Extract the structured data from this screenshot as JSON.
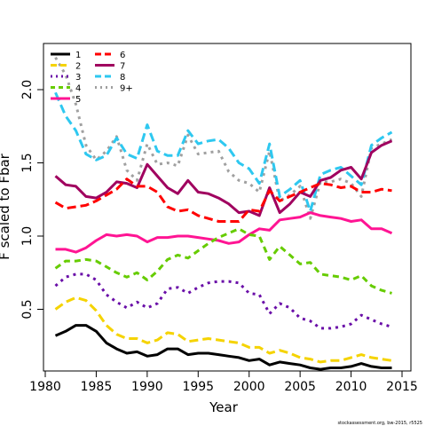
{
  "chart_data": {
    "type": "line",
    "xlabel": "Year",
    "ylabel": "F scaled to Fbar",
    "xlim": [
      1980,
      2015
    ],
    "ylim": [
      0.0,
      2.3
    ],
    "xticks": [
      1980,
      1985,
      1990,
      1995,
      2000,
      2005,
      2010,
      2015
    ],
    "yticks": [
      0.5,
      1.0,
      1.5,
      2.0
    ],
    "ytick_labels": [
      "0.5",
      "1.0",
      "1.5",
      "2.0"
    ],
    "legend_position": "top-left",
    "credit": "stockassessment.org, bw-2015, r5525",
    "x": [
      1981,
      1982,
      1983,
      1984,
      1985,
      1986,
      1987,
      1988,
      1989,
      1990,
      1991,
      1992,
      1993,
      1994,
      1995,
      1996,
      1997,
      1998,
      1999,
      2000,
      2001,
      2002,
      2003,
      2004,
      2005,
      2006,
      2007,
      2008,
      2009,
      2010,
      2011,
      2012,
      2013,
      2014
    ],
    "series": [
      {
        "name": "1",
        "color": "#000000",
        "dash": "solid",
        "values": [
          0.32,
          0.35,
          0.39,
          0.39,
          0.35,
          0.27,
          0.23,
          0.2,
          0.21,
          0.18,
          0.19,
          0.23,
          0.23,
          0.19,
          0.2,
          0.2,
          0.19,
          0.18,
          0.17,
          0.15,
          0.16,
          0.12,
          0.14,
          0.13,
          0.12,
          0.1,
          0.09,
          0.1,
          0.1,
          0.11,
          0.13,
          0.11,
          0.1,
          0.1
        ]
      },
      {
        "name": "2",
        "color": "#f5d300",
        "dash": "dash",
        "values": [
          0.5,
          0.55,
          0.58,
          0.56,
          0.49,
          0.39,
          0.33,
          0.3,
          0.3,
          0.27,
          0.29,
          0.34,
          0.33,
          0.28,
          0.29,
          0.3,
          0.29,
          0.28,
          0.27,
          0.24,
          0.24,
          0.2,
          0.22,
          0.2,
          0.17,
          0.16,
          0.14,
          0.15,
          0.15,
          0.17,
          0.19,
          0.17,
          0.16,
          0.15
        ]
      },
      {
        "name": "3",
        "color": "#6a0fa8",
        "dash": "dot",
        "values": [
          0.66,
          0.72,
          0.74,
          0.74,
          0.7,
          0.6,
          0.55,
          0.51,
          0.55,
          0.51,
          0.54,
          0.64,
          0.65,
          0.61,
          0.65,
          0.68,
          0.69,
          0.69,
          0.68,
          0.61,
          0.6,
          0.47,
          0.54,
          0.51,
          0.44,
          0.42,
          0.37,
          0.37,
          0.38,
          0.4,
          0.46,
          0.43,
          0.4,
          0.38
        ]
      },
      {
        "name": "4",
        "color": "#66cc00",
        "dash": "dashdot",
        "values": [
          0.78,
          0.83,
          0.83,
          0.84,
          0.83,
          0.79,
          0.75,
          0.72,
          0.75,
          0.7,
          0.76,
          0.84,
          0.87,
          0.85,
          0.9,
          0.95,
          0.99,
          1.02,
          1.05,
          1.01,
          1.0,
          0.84,
          0.93,
          0.87,
          0.81,
          0.82,
          0.74,
          0.73,
          0.72,
          0.7,
          0.73,
          0.66,
          0.63,
          0.61
        ]
      },
      {
        "name": "5",
        "color": "#ff1493",
        "dash": "solid",
        "values": [
          0.91,
          0.91,
          0.89,
          0.92,
          0.97,
          1.01,
          1.0,
          1.01,
          1.0,
          0.96,
          0.99,
          0.99,
          1.0,
          1.0,
          0.99,
          0.98,
          0.97,
          0.95,
          0.96,
          1.01,
          1.05,
          1.04,
          1.11,
          1.12,
          1.13,
          1.16,
          1.14,
          1.13,
          1.12,
          1.1,
          1.11,
          1.05,
          1.05,
          1.02
        ]
      },
      {
        "name": "6",
        "color": "#ff0000",
        "dash": "dash",
        "values": [
          1.23,
          1.19,
          1.2,
          1.21,
          1.24,
          1.28,
          1.32,
          1.39,
          1.34,
          1.34,
          1.3,
          1.2,
          1.17,
          1.18,
          1.14,
          1.12,
          1.1,
          1.1,
          1.1,
          1.18,
          1.17,
          1.31,
          1.24,
          1.27,
          1.3,
          1.33,
          1.36,
          1.35,
          1.33,
          1.34,
          1.3,
          1.3,
          1.32,
          1.31
        ]
      },
      {
        "name": "7",
        "color": "#a0005f",
        "dash": "solid",
        "values": [
          1.41,
          1.35,
          1.34,
          1.27,
          1.26,
          1.3,
          1.37,
          1.36,
          1.33,
          1.49,
          1.41,
          1.33,
          1.29,
          1.38,
          1.3,
          1.29,
          1.26,
          1.22,
          1.16,
          1.17,
          1.14,
          1.33,
          1.16,
          1.22,
          1.3,
          1.27,
          1.38,
          1.4,
          1.45,
          1.47,
          1.39,
          1.57,
          1.62,
          1.65
        ]
      },
      {
        "name": "8",
        "color": "#2ec8f0",
        "dash": "dash",
        "values": [
          1.98,
          1.82,
          1.72,
          1.56,
          1.52,
          1.55,
          1.67,
          1.56,
          1.53,
          1.76,
          1.58,
          1.55,
          1.55,
          1.72,
          1.63,
          1.65,
          1.66,
          1.6,
          1.5,
          1.46,
          1.36,
          1.63,
          1.27,
          1.32,
          1.38,
          1.17,
          1.42,
          1.45,
          1.47,
          1.41,
          1.35,
          1.62,
          1.67,
          1.71
        ]
      },
      {
        "name": "9+",
        "color": "#a0a0a0",
        "dash": "dot",
        "values": [
          2.22,
          2.1,
          1.9,
          1.62,
          1.52,
          1.58,
          1.68,
          1.45,
          1.38,
          1.63,
          1.49,
          1.5,
          1.48,
          1.69,
          1.56,
          1.57,
          1.58,
          1.44,
          1.38,
          1.36,
          1.3,
          1.58,
          1.24,
          1.28,
          1.34,
          1.12,
          1.37,
          1.37,
          1.39,
          1.36,
          1.27,
          1.6,
          1.63,
          1.66
        ]
      }
    ]
  }
}
